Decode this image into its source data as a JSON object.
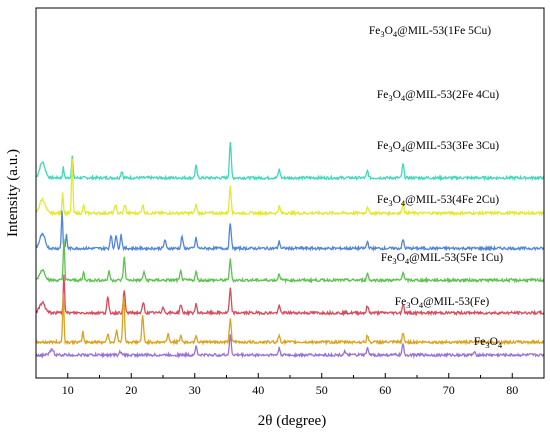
{
  "chart_data": {
    "type": "line",
    "xlabel": "2θ (degree)",
    "ylabel": "Intensity (a.u.)",
    "xlim": [
      5,
      85
    ],
    "x_ticks": [
      10,
      20,
      30,
      40,
      50,
      60,
      70,
      80
    ],
    "y_ticks_shown": false,
    "grid": false,
    "legend": "none",
    "series": [
      {
        "name": "Fe3O4@MIL-53(1Fe 5Cu)",
        "label_parts": [
          "Fe",
          "3",
          "O",
          "4",
          "@MIL-53(1Fe 5Cu)"
        ],
        "color": "#3fd9b8",
        "baseline": 10.3,
        "peaks": [
          [
            6.0,
            0.9,
            0.6
          ],
          [
            9.3,
            0.6,
            0.15
          ],
          [
            10.7,
            1.3,
            0.15
          ],
          [
            18.5,
            0.4,
            0.2
          ],
          [
            30.2,
            0.7,
            0.2
          ],
          [
            35.6,
            2.1,
            0.2
          ],
          [
            43.3,
            0.5,
            0.2
          ],
          [
            57.2,
            0.4,
            0.2
          ],
          [
            62.8,
            0.8,
            0.2
          ]
        ]
      },
      {
        "name": "Fe3O4@MIL-53(2Fe 4Cu)",
        "label_parts": [
          "Fe",
          "3",
          "O",
          "4",
          "@MIL-53(2Fe 4Cu)"
        ],
        "color": "#e3e831",
        "baseline": 8.25,
        "peaks": [
          [
            6.0,
            0.8,
            0.6
          ],
          [
            9.2,
            1.2,
            0.15
          ],
          [
            10.7,
            3.2,
            0.15
          ],
          [
            12.5,
            0.5,
            0.15
          ],
          [
            17.5,
            0.5,
            0.2
          ],
          [
            19.0,
            0.5,
            0.2
          ],
          [
            21.8,
            0.5,
            0.2
          ],
          [
            30.2,
            0.5,
            0.2
          ],
          [
            35.6,
            1.6,
            0.2
          ],
          [
            43.3,
            0.4,
            0.2
          ],
          [
            57.2,
            0.4,
            0.2
          ],
          [
            62.8,
            0.6,
            0.2
          ]
        ]
      },
      {
        "name": "Fe3O4@MIL-53(3Fe 3Cu)",
        "label_parts": [
          "Fe",
          "3",
          "O",
          "4",
          "@MIL-53(3Fe 3Cu)"
        ],
        "color": "#4f86d8",
        "baseline": 6.2,
        "peaks": [
          [
            6.0,
            0.8,
            0.6
          ],
          [
            9.1,
            2.2,
            0.15
          ],
          [
            9.8,
            0.8,
            0.15
          ],
          [
            16.8,
            0.8,
            0.2
          ],
          [
            17.6,
            0.8,
            0.2
          ],
          [
            18.4,
            0.8,
            0.2
          ],
          [
            25.3,
            0.5,
            0.2
          ],
          [
            28.0,
            0.7,
            0.2
          ],
          [
            30.2,
            0.6,
            0.2
          ],
          [
            35.6,
            1.5,
            0.2
          ],
          [
            43.3,
            0.4,
            0.2
          ],
          [
            57.2,
            0.4,
            0.2
          ],
          [
            62.8,
            0.5,
            0.2
          ]
        ]
      },
      {
        "name": "Fe3O4@MIL-53(4Fe 2Cu)",
        "label_parts": [
          "Fe",
          "3",
          "O",
          "4",
          "@MIL-53(4Fe 2Cu)"
        ],
        "color": "#5cc24e",
        "baseline": 4.35,
        "peaks": [
          [
            6.0,
            0.6,
            0.6
          ],
          [
            9.4,
            2.4,
            0.15
          ],
          [
            12.5,
            0.5,
            0.15
          ],
          [
            16.5,
            0.5,
            0.2
          ],
          [
            18.9,
            1.3,
            0.2
          ],
          [
            22.0,
            0.5,
            0.2
          ],
          [
            27.8,
            0.5,
            0.2
          ],
          [
            30.2,
            0.5,
            0.2
          ],
          [
            35.6,
            1.2,
            0.2
          ],
          [
            43.3,
            0.4,
            0.2
          ],
          [
            57.2,
            0.4,
            0.2
          ],
          [
            62.8,
            0.5,
            0.2
          ]
        ]
      },
      {
        "name": "Fe3O4@MIL-53(5Fe 1Cu)",
        "label_parts": [
          "Fe",
          "3",
          "O",
          "4",
          "@MIL-53(5Fe 1Cu)"
        ],
        "color": "#d94a5a",
        "baseline": 2.45,
        "peaks": [
          [
            6.0,
            0.6,
            0.6
          ],
          [
            9.4,
            2.3,
            0.15
          ],
          [
            16.3,
            0.9,
            0.2
          ],
          [
            18.9,
            1.3,
            0.2
          ],
          [
            21.9,
            0.6,
            0.2
          ],
          [
            25.0,
            0.4,
            0.2
          ],
          [
            27.8,
            0.5,
            0.2
          ],
          [
            30.2,
            0.5,
            0.2
          ],
          [
            35.6,
            1.4,
            0.2
          ],
          [
            43.3,
            0.4,
            0.2
          ],
          [
            57.2,
            0.4,
            0.2
          ],
          [
            62.8,
            0.5,
            0.2
          ]
        ]
      },
      {
        "name": "Fe3O4@MIL-53(Fe)",
        "label_parts": [
          "Fe",
          "3",
          "O",
          "4",
          "@MIL-53(Fe)"
        ],
        "color": "#d9a21f",
        "baseline": 0.75,
        "peaks": [
          [
            9.3,
            2.8,
            0.15
          ],
          [
            12.4,
            0.6,
            0.15
          ],
          [
            16.3,
            0.5,
            0.2
          ],
          [
            17.7,
            0.7,
            0.2
          ],
          [
            18.8,
            2.7,
            0.2
          ],
          [
            21.8,
            1.5,
            0.2
          ],
          [
            25.8,
            0.5,
            0.2
          ],
          [
            27.8,
            0.4,
            0.2
          ],
          [
            30.2,
            0.4,
            0.2
          ],
          [
            35.6,
            1.4,
            0.2
          ],
          [
            43.3,
            0.4,
            0.2
          ],
          [
            57.2,
            0.4,
            0.2
          ],
          [
            62.8,
            0.5,
            0.2
          ]
        ]
      },
      {
        "name": "Fe3O4",
        "label_parts": [
          "Fe",
          "3",
          "O",
          "4",
          ""
        ],
        "color": "#9b72cf",
        "baseline": 0.0,
        "peaks": [
          [
            7.5,
            0.3,
            0.4
          ],
          [
            18.3,
            0.2,
            0.2
          ],
          [
            30.2,
            0.5,
            0.2
          ],
          [
            35.6,
            1.2,
            0.2
          ],
          [
            43.3,
            0.4,
            0.2
          ],
          [
            53.6,
            0.2,
            0.2
          ],
          [
            57.2,
            0.4,
            0.2
          ],
          [
            62.8,
            0.6,
            0.2
          ],
          [
            74.0,
            0.15,
            0.2
          ]
        ]
      }
    ]
  }
}
